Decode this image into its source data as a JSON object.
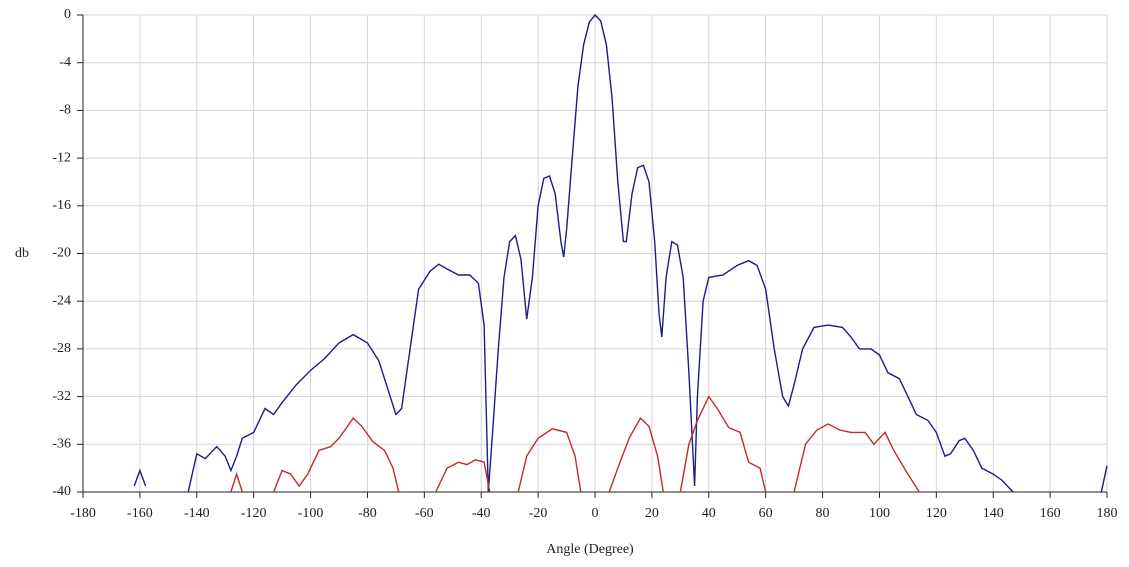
{
  "chart_data": {
    "type": "line",
    "x_label": "Angle (Degree)",
    "y_label": "db",
    "xlim": [
      -180,
      180
    ],
    "ylim": [
      -40,
      0
    ],
    "xticks": [
      -180,
      -160,
      -140,
      -120,
      -100,
      -80,
      -60,
      -40,
      -20,
      0,
      20,
      40,
      60,
      80,
      100,
      120,
      140,
      160,
      180
    ],
    "yticks": [
      0,
      -4,
      -8,
      -12,
      -16,
      -20,
      -24,
      -28,
      -32,
      -36,
      -40
    ],
    "grid": true,
    "series": [
      {
        "color": "#1c1c8a",
        "x": [
          -162,
          -160,
          -158,
          -150,
          -143,
          -140,
          -137,
          -133,
          -130,
          -128,
          -126,
          -124,
          -120,
          -118,
          -116,
          -113,
          -110,
          -105,
          -100,
          -95,
          -90,
          -85,
          -80,
          -76,
          -72,
          -70,
          -68,
          -65,
          -62,
          -58,
          -55,
          -52,
          -48,
          -44,
          -41,
          -39,
          -37.5,
          -36,
          -34,
          -32,
          -30,
          -28,
          -26,
          -24,
          -22,
          -20,
          -18,
          -16,
          -14,
          -12,
          -11,
          -10,
          -8,
          -6,
          -4,
          -2,
          0,
          2,
          4,
          6,
          8,
          10,
          11,
          13,
          15,
          17,
          19,
          21,
          22.5,
          23.5,
          25,
          27,
          29,
          31,
          33,
          35,
          36,
          38,
          40,
          45,
          50,
          54,
          57,
          60,
          63,
          66,
          68,
          70,
          73,
          77,
          82,
          87,
          90,
          93,
          97,
          100,
          103,
          107,
          110,
          113,
          117,
          120,
          123,
          125,
          128,
          130,
          133,
          136,
          140,
          143,
          147,
          160,
          178,
          180
        ],
        "values": [
          -39.5,
          -38.2,
          -39.5,
          null,
          -40,
          -36.8,
          -37.2,
          -36.2,
          -37,
          -38.2,
          -37,
          -35.5,
          -35,
          -34,
          -33,
          -33.5,
          -32.5,
          -31,
          -29.8,
          -28.8,
          -27.5,
          -26.8,
          -27.5,
          -29,
          -32,
          -33.5,
          -33,
          -28,
          -23,
          -21.5,
          -20.9,
          -21.3,
          -21.8,
          -21.8,
          -22.5,
          -26,
          -40,
          -35,
          -28,
          -22,
          -19,
          -18.5,
          -20.5,
          -25.5,
          -22,
          -16,
          -13.7,
          -13.5,
          -15,
          -19,
          -20.3,
          -18,
          -12,
          -6,
          -2.5,
          -0.6,
          0,
          -0.5,
          -2.5,
          -7,
          -14,
          -19,
          -19,
          -15,
          -12.8,
          -12.6,
          -14,
          -19,
          -25,
          -27,
          -22,
          -19,
          -19.3,
          -22,
          -30,
          -39.5,
          -32,
          -24,
          -22,
          -21.8,
          -21,
          -20.6,
          -21,
          -23,
          -28,
          -32,
          -32.8,
          -31,
          -28,
          -26.2,
          -26,
          -26.2,
          -27,
          -28,
          -28,
          -28.5,
          -30,
          -30.5,
          -32,
          -33.5,
          -34,
          -35,
          -37,
          -36.8,
          -35.7,
          -35.5,
          -36.5,
          -38,
          -38.5,
          -39,
          -40,
          null,
          -40,
          -37.8
        ]
      },
      {
        "color": "#c42a2a",
        "x": [
          -128,
          -126,
          -124,
          -118,
          -113,
          -110,
          -107,
          -104,
          -101,
          -97,
          -93,
          -90,
          -87,
          -85,
          -82,
          -78,
          -74,
          -71,
          -69,
          -62,
          -56,
          -52,
          -48,
          -45,
          -42,
          -39,
          -37,
          -32,
          -27,
          -24,
          -20,
          -15,
          -10,
          -7,
          -5,
          0,
          5,
          8,
          12,
          16,
          19,
          22,
          24,
          27,
          30,
          33,
          36,
          40,
          43,
          47,
          51,
          54,
          58,
          60,
          65,
          70,
          74,
          78,
          82,
          86,
          90,
          95,
          98,
          102,
          105,
          110,
          114
        ],
        "values": [
          -40,
          -38.5,
          -40,
          null,
          -40,
          -38.2,
          -38.5,
          -39.5,
          -38.5,
          -36.5,
          -36.2,
          -35.5,
          -34.5,
          -33.8,
          -34.5,
          -35.8,
          -36.5,
          -38,
          -40,
          null,
          -40,
          -38,
          -37.5,
          -37.7,
          -37.3,
          -37.5,
          -40,
          null,
          -40,
          -37,
          -35.5,
          -34.7,
          -35,
          -37,
          -40,
          null,
          -40,
          -38,
          -35.5,
          -33.8,
          -34.5,
          -37,
          -40,
          null,
          -40,
          -36,
          -34,
          -32,
          -33,
          -34.6,
          -35,
          -37.5,
          -38,
          -40,
          null,
          -40,
          -36,
          -34.8,
          -34.3,
          -34.8,
          -35,
          -35,
          -36,
          -35,
          -36.5,
          -38.5,
          -40
        ]
      }
    ]
  }
}
